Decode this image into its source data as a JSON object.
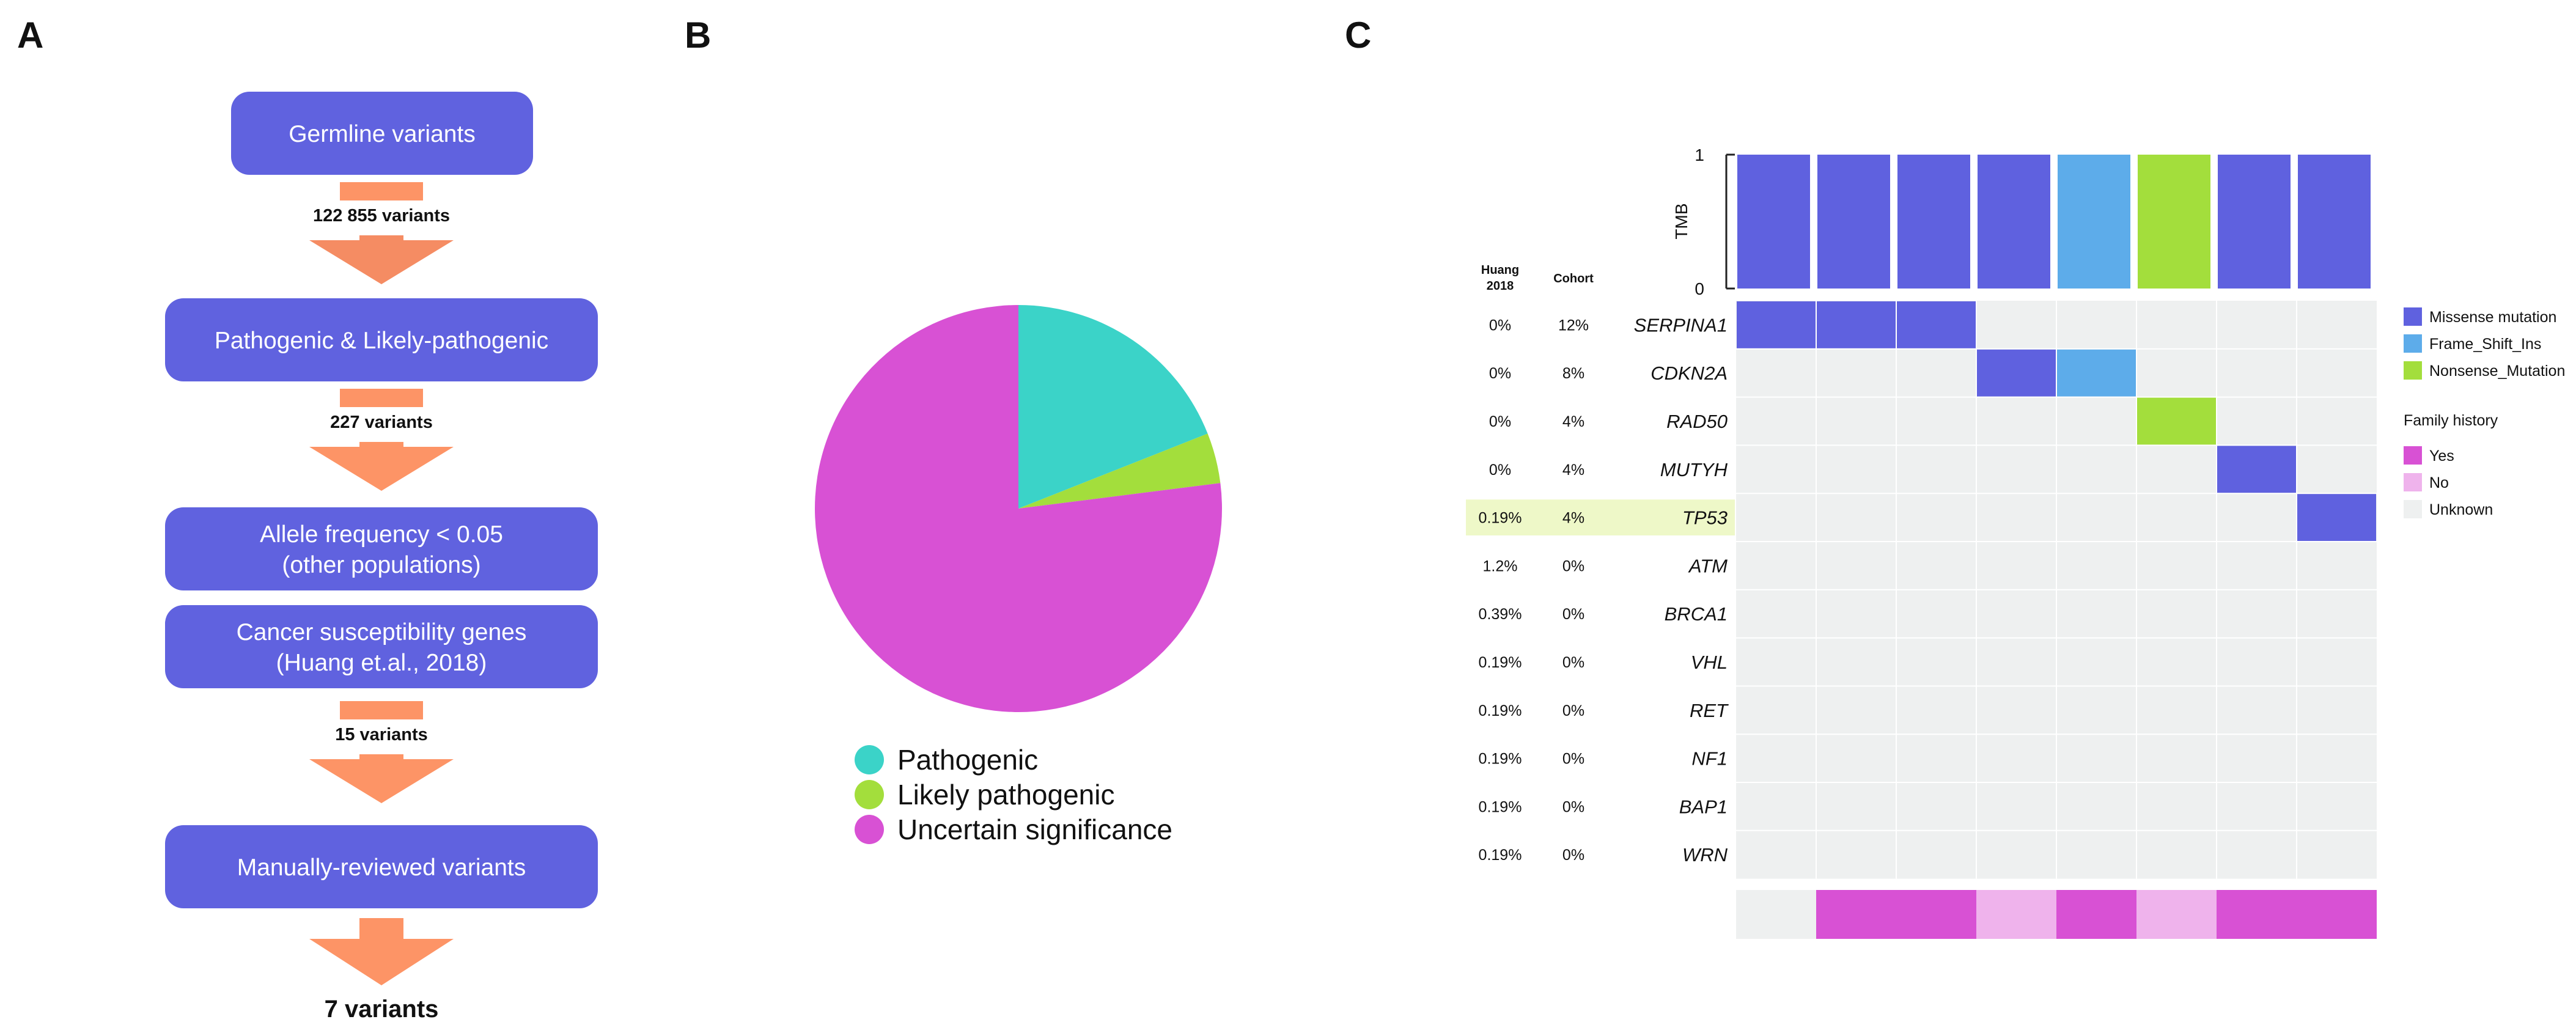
{
  "panel_labels": {
    "a": "A",
    "b": "B",
    "c": "C"
  },
  "colors": {
    "box": "#6062DF",
    "arrow": "#FD9466",
    "arrow_dark": "#F58C63",
    "pathogenic": "#3BD3C8",
    "likely_pathogenic": "#A3DE3C",
    "uncertain": "#D851D4",
    "missense": "#5F61DF",
    "frameshift": "#5DACEA",
    "nonsense": "#A3DE3C",
    "yes": "#D851D4",
    "no": "#EFB3EC",
    "unknown": "#EEF0F0",
    "highlight": "#EEF8C8"
  },
  "flowchart": {
    "boxes": [
      {
        "lines": [
          "Germline variants"
        ]
      },
      {
        "lines": [
          "Pathogenic & Likely-pathogenic"
        ]
      },
      {
        "lines": [
          "Allele frequency < 0.05",
          "(other populations)"
        ]
      },
      {
        "lines": [
          "Cancer susceptibility genes",
          "(Huang et.al., 2018)"
        ]
      },
      {
        "lines": [
          "Manually-reviewed variants"
        ]
      }
    ],
    "counts": [
      "122 855 variants",
      "227 variants",
      "15 variants",
      "7 variants"
    ]
  },
  "chart_data": [
    {
      "type": "pie",
      "title": "",
      "slices": [
        {
          "label": "Pathogenic",
          "value": 19,
          "color": "#3BD3C8"
        },
        {
          "label": "Likely pathogenic",
          "value": 4,
          "color": "#A3DE3C"
        },
        {
          "label": "Uncertain significance",
          "value": 77,
          "color": "#D851D4"
        }
      ],
      "legend": [
        "Pathogenic",
        "Likely pathogenic",
        "Uncertain significance"
      ]
    },
    {
      "type": "heatmap",
      "title": "",
      "tmb": {
        "ylabel": "TMB",
        "ylim": [
          0,
          1
        ],
        "ticks": [
          "1",
          "0"
        ],
        "values": [
          1,
          1,
          1,
          1,
          1,
          1,
          1,
          1
        ],
        "types": [
          "missense",
          "missense",
          "missense",
          "missense",
          "frameshift",
          "nonsense",
          "missense",
          "missense"
        ]
      },
      "column_headers": {
        "huang_line1": "Huang",
        "huang_line2": "2018",
        "cohort": "Cohort"
      },
      "genes": [
        {
          "name": "SERPINA1",
          "huang": "0%",
          "cohort": "12%"
        },
        {
          "name": "CDKN2A",
          "huang": "0%",
          "cohort": "8%"
        },
        {
          "name": "RAD50",
          "huang": "0%",
          "cohort": "4%"
        },
        {
          "name": "MUTYH",
          "huang": "0%",
          "cohort": "4%"
        },
        {
          "name": "TP53",
          "huang": "0.19%",
          "cohort": "4%",
          "highlight": true
        },
        {
          "name": "ATM",
          "huang": "1.2%",
          "cohort": "0%"
        },
        {
          "name": "BRCA1",
          "huang": "0.39%",
          "cohort": "0%"
        },
        {
          "name": "VHL",
          "huang": "0.19%",
          "cohort": "0%"
        },
        {
          "name": "RET",
          "huang": "0.19%",
          "cohort": "0%"
        },
        {
          "name": "NF1",
          "huang": "0.19%",
          "cohort": "0%"
        },
        {
          "name": "BAP1",
          "huang": "0.19%",
          "cohort": "0%"
        },
        {
          "name": "WRN",
          "huang": "0.19%",
          "cohort": "0%"
        }
      ],
      "samples": 8,
      "mutations": [
        {
          "gene": 0,
          "sample": 0,
          "type": "missense"
        },
        {
          "gene": 0,
          "sample": 1,
          "type": "missense"
        },
        {
          "gene": 0,
          "sample": 2,
          "type": "missense"
        },
        {
          "gene": 1,
          "sample": 3,
          "type": "missense"
        },
        {
          "gene": 1,
          "sample": 4,
          "type": "frameshift"
        },
        {
          "gene": 2,
          "sample": 5,
          "type": "nonsense"
        },
        {
          "gene": 3,
          "sample": 6,
          "type": "missense"
        },
        {
          "gene": 4,
          "sample": 7,
          "type": "missense"
        }
      ],
      "family_history": [
        "unknown",
        "yes",
        "yes",
        "no",
        "yes",
        "no",
        "yes",
        "yes"
      ],
      "legend_mutations": [
        {
          "key": "missense",
          "label": "Missense mutation"
        },
        {
          "key": "frameshift",
          "label": "Frame_Shift_Ins"
        },
        {
          "key": "nonsense",
          "label": "Nonsense_Mutation"
        }
      ],
      "legend_family_title": "Family history",
      "legend_family": [
        {
          "key": "yes",
          "label": "Yes"
        },
        {
          "key": "no",
          "label": "No"
        },
        {
          "key": "unknown",
          "label": "Unknown"
        }
      ]
    }
  ]
}
